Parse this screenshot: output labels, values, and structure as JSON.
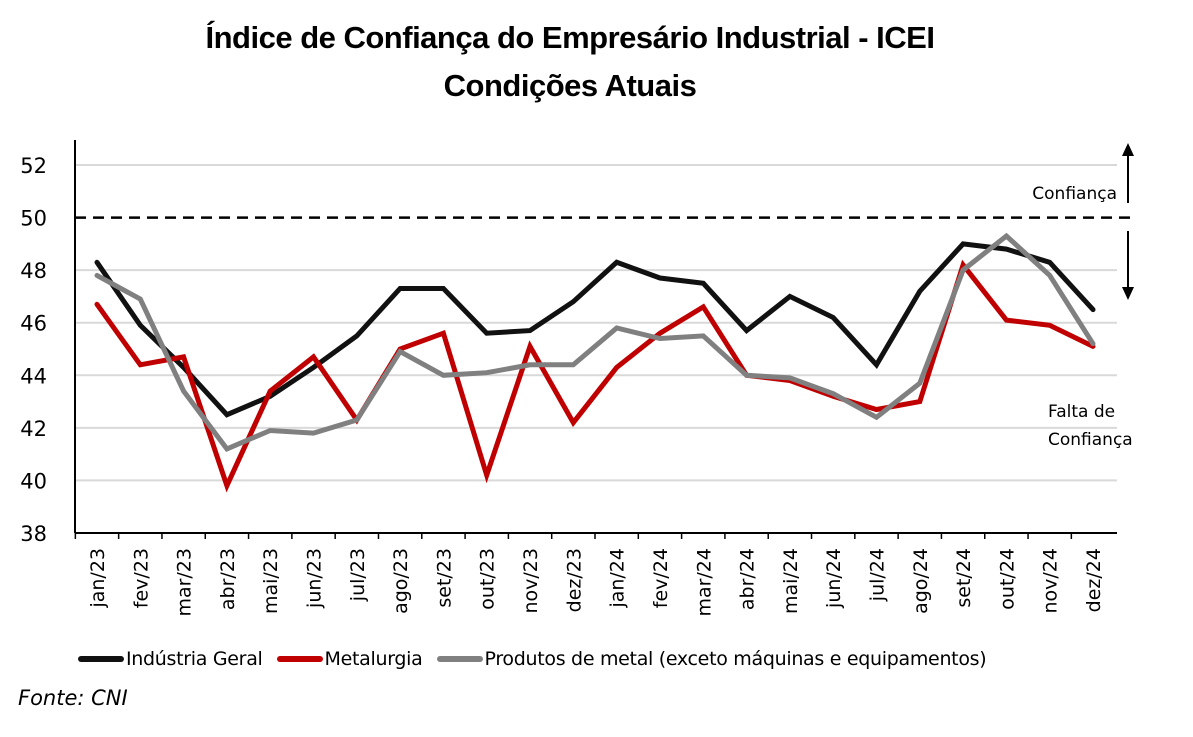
{
  "chart_data": {
    "type": "line",
    "title": "Índice de Confiança do Empresário Industrial - ICEI",
    "subtitle": "Condições Atuais",
    "xlabel": "",
    "ylabel": "",
    "ylim": [
      38,
      52
    ],
    "yticks": [
      38,
      40,
      42,
      44,
      46,
      48,
      50,
      52
    ],
    "grid": true,
    "legend_position": "bottom",
    "categories": [
      "jan/23",
      "fev/23",
      "mar/23",
      "abr/23",
      "mai/23",
      "jun/23",
      "jul/23",
      "ago/23",
      "set/23",
      "out/23",
      "nov/23",
      "dez/23",
      "jan/24",
      "fev/24",
      "mar/24",
      "abr/24",
      "mai/24",
      "jun/24",
      "jul/24",
      "ago/24",
      "set/24",
      "out/24",
      "nov/24",
      "dez/24"
    ],
    "series": [
      {
        "name": "Indústria Geral",
        "color": "#111111",
        "values": [
          48.3,
          45.9,
          44.3,
          42.5,
          43.2,
          44.3,
          45.5,
          47.3,
          47.3,
          45.6,
          45.7,
          46.8,
          48.3,
          47.7,
          47.5,
          45.7,
          47.0,
          46.2,
          44.4,
          47.2,
          49.0,
          48.8,
          48.3,
          46.5
        ]
      },
      {
        "name": "Metalurgia",
        "color": "#c00000",
        "values": [
          46.7,
          44.4,
          44.7,
          39.8,
          43.4,
          44.7,
          42.3,
          45.0,
          45.6,
          40.2,
          45.1,
          42.2,
          44.3,
          45.6,
          46.6,
          44.0,
          43.8,
          43.2,
          42.7,
          43.0,
          48.2,
          46.1,
          45.9,
          45.1
        ]
      },
      {
        "name": "Produtos de metal (exceto máquinas e equipamentos)",
        "color": "#808080",
        "values": [
          47.8,
          46.9,
          43.4,
          41.2,
          41.9,
          41.8,
          42.3,
          44.9,
          44.0,
          44.1,
          44.4,
          44.4,
          45.8,
          45.4,
          45.5,
          44.0,
          43.9,
          43.3,
          42.4,
          43.7,
          48.0,
          49.3,
          47.8,
          45.2
        ]
      }
    ],
    "reference_line": {
      "value": 50,
      "style": "dashed",
      "color": "#000000"
    },
    "annotations": {
      "above": "Confiança",
      "below_line1": "Falta de",
      "below_line2": "Confiança"
    },
    "source": "Fonte: CNI"
  }
}
